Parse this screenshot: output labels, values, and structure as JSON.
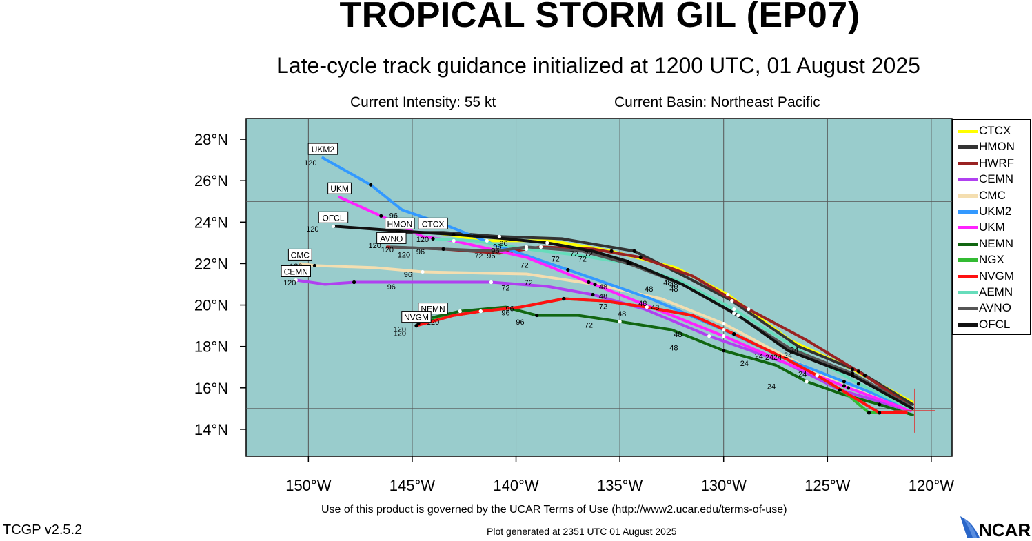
{
  "header": {
    "title": "TROPICAL STORM GIL (EP07)",
    "subtitle": "Late-cycle track guidance initialized at 1200 UTC, 01 August 2025",
    "intensity": "Current Intensity: 55 kt",
    "basin": "Current Basin: Northeast Pacific"
  },
  "footer": {
    "terms": "Use of this product is governed by the UCAR Terms of Use (http://www2.ucar.edu/terms-of-use)",
    "version": "TCGP v2.5.2",
    "generated": "Plot generated at 2351 UTC   01 August 2025",
    "logo_text": "NCAR"
  },
  "colors": {
    "ocean": "#99cccc",
    "grid": "#555555",
    "current_position_marker": "#dd3333"
  },
  "chart_data": {
    "type": "line",
    "xlim": [
      -153,
      -119
    ],
    "ylim": [
      12.7,
      29
    ],
    "xticks": [
      -150,
      -145,
      -140,
      -135,
      -130,
      -125,
      -120
    ],
    "xtick_labels": [
      "150°W",
      "145°W",
      "140°W",
      "135°W",
      "130°W",
      "125°W",
      "120°W"
    ],
    "yticks": [
      14,
      16,
      18,
      20,
      22,
      24,
      26,
      28
    ],
    "ytick_labels": [
      "14°N",
      "16°N",
      "18°N",
      "20°N",
      "22°N",
      "24°N",
      "26°N",
      "28°N"
    ],
    "grid": true,
    "legend_position": "right",
    "current_position": [
      -120.8,
      14.9
    ],
    "series": [
      {
        "name": "CTCX",
        "color": "#ffff00",
        "points": [
          [
            -120.9,
            15.3
          ],
          [
            -123.8,
            16.9
          ],
          [
            -126.8,
            18.3
          ],
          [
            -129.8,
            20.5
          ],
          [
            -132.3,
            21.8
          ],
          [
            -135.4,
            22.6
          ],
          [
            -138.3,
            23.1
          ],
          [
            -141.4,
            23.1
          ],
          [
            -144.0,
            23.5
          ]
        ],
        "end_label": "CTCX"
      },
      {
        "name": "HMON",
        "color": "#333333",
        "points": [
          [
            -120.9,
            15.2
          ],
          [
            -123.5,
            16.8
          ],
          [
            -126.4,
            18.0
          ],
          [
            -129.6,
            20.2
          ],
          [
            -132.1,
            21.5
          ],
          [
            -134.3,
            22.6
          ],
          [
            -137.8,
            23.2
          ],
          [
            -140.8,
            23.3
          ],
          [
            -143.5,
            23.5
          ],
          [
            -145.6,
            23.5
          ]
        ],
        "end_label": "HMON"
      },
      {
        "name": "HWRF",
        "color": "#992222",
        "points": [
          [
            -121.0,
            15.1
          ],
          [
            -123.2,
            16.6
          ],
          [
            -126.0,
            18.3
          ],
          [
            -128.8,
            19.8
          ],
          [
            -131.5,
            21.4
          ],
          [
            -134.0,
            22.3
          ],
          [
            -136.3,
            22.7
          ],
          [
            -138.8,
            22.8
          ],
          [
            -140.8,
            22.5
          ],
          [
            -143.5,
            22.7
          ],
          [
            -146.2,
            22.8
          ]
        ]
      },
      {
        "name": "CEMN",
        "color": "#b040f0",
        "points": [
          [
            -121.0,
            14.9
          ],
          [
            -124.4,
            15.9
          ],
          [
            -127.0,
            17.2
          ],
          [
            -130.7,
            18.5
          ],
          [
            -133.8,
            19.8
          ],
          [
            -136.3,
            20.5
          ],
          [
            -138.5,
            20.9
          ],
          [
            -141.2,
            21.1
          ],
          [
            -143.2,
            21.1
          ],
          [
            -147.8,
            21.1
          ],
          [
            -149.2,
            21.0
          ],
          [
            -150.6,
            21.2
          ]
        ],
        "end_label": "CEMN"
      },
      {
        "name": "CMC",
        "color": "#f4deb0",
        "points": [
          [
            -121.0,
            15.0
          ],
          [
            -124.2,
            16.1
          ],
          [
            -127.0,
            17.5
          ],
          [
            -130.0,
            19.1
          ],
          [
            -133.0,
            20.3
          ],
          [
            -136.2,
            21.0
          ],
          [
            -139.5,
            21.5
          ],
          [
            -144.5,
            21.6
          ],
          [
            -146.8,
            21.8
          ],
          [
            -149.7,
            21.9
          ],
          [
            -150.4,
            22.0
          ]
        ],
        "end_label": "CMC"
      },
      {
        "name": "UKM2",
        "color": "#3399ff",
        "points": [
          [
            -121.0,
            15.0
          ],
          [
            -124.2,
            16.3
          ],
          [
            -127.0,
            17.4
          ],
          [
            -130.0,
            18.8
          ],
          [
            -133.5,
            20.3
          ],
          [
            -137.5,
            21.7
          ],
          [
            -141.0,
            22.9
          ],
          [
            -143.5,
            23.9
          ],
          [
            -145.5,
            24.6
          ],
          [
            -147.0,
            25.8
          ],
          [
            -149.3,
            27.1
          ]
        ],
        "end_label": "UKM2"
      },
      {
        "name": "UKM",
        "color": "#ff22ff",
        "points": [
          [
            -121.0,
            14.9
          ],
          [
            -124.0,
            16.0
          ],
          [
            -127.0,
            17.2
          ],
          [
            -130.0,
            18.5
          ],
          [
            -133.5,
            19.9
          ],
          [
            -136.5,
            21.1
          ],
          [
            -139.5,
            22.3
          ],
          [
            -143.0,
            23.1
          ],
          [
            -144.5,
            23.3
          ],
          [
            -146.5,
            24.3
          ],
          [
            -148.5,
            25.2
          ]
        ],
        "end_label": "UKM"
      },
      {
        "name": "NEMN",
        "color": "#116611",
        "points": [
          [
            -120.9,
            14.7
          ],
          [
            -122.5,
            15.2
          ],
          [
            -124.3,
            15.7
          ],
          [
            -126.0,
            16.3
          ],
          [
            -127.5,
            17.1
          ],
          [
            -130.0,
            17.8
          ],
          [
            -132.5,
            18.8
          ],
          [
            -135.0,
            19.2
          ],
          [
            -137.0,
            19.5
          ],
          [
            -139.0,
            19.5
          ],
          [
            -140.5,
            19.9
          ],
          [
            -142.7,
            19.7
          ],
          [
            -144.0,
            19.4
          ]
        ],
        "end_label": "NEMN"
      },
      {
        "name": "NGX",
        "color": "#33bb33",
        "points": [
          [
            -121.4,
            14.8
          ],
          [
            -123.0,
            14.8
          ],
          [
            -124.2,
            15.8
          ],
          [
            -125.5,
            16.6
          ],
          [
            -127.0,
            17.4
          ],
          [
            -129.5,
            18.6
          ],
          [
            -131.5,
            19.5
          ],
          [
            -133.7,
            19.9
          ],
          [
            -135.8,
            20.2
          ],
          [
            -137.7,
            20.3
          ],
          [
            -139.8,
            19.9
          ],
          [
            -141.7,
            19.7
          ],
          [
            -143.0,
            19.5
          ],
          [
            -144.7,
            19.1
          ]
        ]
      },
      {
        "name": "NVGM",
        "color": "#ff1111",
        "points": [
          [
            -121.2,
            14.8
          ],
          [
            -122.5,
            14.8
          ],
          [
            -124.0,
            15.7
          ],
          [
            -125.5,
            16.6
          ],
          [
            -127.0,
            17.4
          ],
          [
            -129.5,
            18.6
          ],
          [
            -131.5,
            19.5
          ],
          [
            -133.7,
            19.9
          ],
          [
            -135.8,
            20.2
          ],
          [
            -137.7,
            20.3
          ],
          [
            -139.8,
            19.9
          ],
          [
            -141.7,
            19.7
          ],
          [
            -143.0,
            19.5
          ],
          [
            -144.8,
            19.0
          ]
        ],
        "end_label": "NVGM"
      },
      {
        "name": "AEMN",
        "color": "#66ddbb",
        "points": [
          [
            -121.0,
            15.0
          ],
          [
            -123.5,
            16.2
          ],
          [
            -126.5,
            17.9
          ],
          [
            -129.5,
            19.8
          ],
          [
            -132.0,
            21.1
          ],
          [
            -134.5,
            22.0
          ],
          [
            -137.0,
            22.4
          ],
          [
            -139.5,
            22.7
          ],
          [
            -142.0,
            23.1
          ],
          [
            -144.0,
            23.2
          ]
        ]
      },
      {
        "name": "AVNO",
        "color": "#555555",
        "points": [
          [
            -121.0,
            15.1
          ],
          [
            -123.8,
            16.7
          ],
          [
            -126.8,
            17.9
          ],
          [
            -129.5,
            19.6
          ],
          [
            -132.0,
            21.0
          ],
          [
            -134.6,
            22.0
          ],
          [
            -136.8,
            22.6
          ],
          [
            -139.5,
            22.8
          ],
          [
            -141.0,
            22.6
          ],
          [
            -143.5,
            22.7
          ],
          [
            -146.0,
            22.8
          ]
        ],
        "end_label": "AVNO"
      },
      {
        "name": "OFCL",
        "color": "#111111",
        "points": [
          [
            -120.9,
            15.0
          ],
          [
            -123.8,
            16.6
          ],
          [
            -126.9,
            17.8
          ],
          [
            -129.3,
            19.5
          ],
          [
            -132.0,
            21.0
          ],
          [
            -134.6,
            22.1
          ],
          [
            -136.3,
            22.6
          ],
          [
            -138.5,
            23.0
          ],
          [
            -140.5,
            23.2
          ],
          [
            -143.0,
            23.4
          ],
          [
            -146.0,
            23.6
          ],
          [
            -148.8,
            23.8
          ]
        ],
        "end_label": "OFCL"
      }
    ],
    "annotations": [
      {
        "text": "120",
        "lon": -149.9,
        "lat": 26.73
      },
      {
        "text": "120",
        "lon": -149.8,
        "lat": 23.55
      },
      {
        "text": "120",
        "lon": -150.6,
        "lat": 21.75
      },
      {
        "text": "120",
        "lon": -150.9,
        "lat": 20.95
      },
      {
        "text": "120",
        "lon": -146.8,
        "lat": 22.75
      },
      {
        "text": "120",
        "lon": -146.2,
        "lat": 22.55
      },
      {
        "text": "120",
        "lon": -145.4,
        "lat": 22.3
      },
      {
        "text": "120",
        "lon": -144.5,
        "lat": 23.05
      },
      {
        "text": "120",
        "lon": -145.6,
        "lat": 18.7
      },
      {
        "text": "120",
        "lon": -145.6,
        "lat": 18.5
      },
      {
        "text": "120",
        "lon": -144.0,
        "lat": 19.05
      },
      {
        "text": "96",
        "lon": -145.9,
        "lat": 24.2
      },
      {
        "text": "96",
        "lon": -145.6,
        "lat": 23.35
      },
      {
        "text": "96",
        "lon": -144.6,
        "lat": 22.45
      },
      {
        "text": "96",
        "lon": -145.2,
        "lat": 21.35
      },
      {
        "text": "96",
        "lon": -146.0,
        "lat": 20.75
      },
      {
        "text": "96",
        "lon": -140.9,
        "lat": 22.7
      },
      {
        "text": "96",
        "lon": -140.6,
        "lat": 22.85
      },
      {
        "text": "96",
        "lon": -141.2,
        "lat": 22.25
      },
      {
        "text": "96",
        "lon": -141.0,
        "lat": 22.5
      },
      {
        "text": "96",
        "lon": -140.5,
        "lat": 19.5
      },
      {
        "text": "96",
        "lon": -140.3,
        "lat": 19.7
      },
      {
        "text": "96",
        "lon": -139.8,
        "lat": 19.05
      },
      {
        "text": "72",
        "lon": -141.8,
        "lat": 22.25
      },
      {
        "text": "72",
        "lon": -139.6,
        "lat": 21.8
      },
      {
        "text": "72",
        "lon": -139.4,
        "lat": 20.95
      },
      {
        "text": "72",
        "lon": -140.5,
        "lat": 20.7
      },
      {
        "text": "72",
        "lon": -138.1,
        "lat": 22.1
      },
      {
        "text": "72",
        "lon": -137.2,
        "lat": 22.35
      },
      {
        "text": "72",
        "lon": -136.8,
        "lat": 22.1
      },
      {
        "text": "72",
        "lon": -136.5,
        "lat": 22.35
      },
      {
        "text": "72",
        "lon": -135.8,
        "lat": 19.8
      },
      {
        "text": "72",
        "lon": -136.5,
        "lat": 18.9
      },
      {
        "text": "48",
        "lon": -135.8,
        "lat": 20.75
      },
      {
        "text": "48",
        "lon": -135.8,
        "lat": 20.3
      },
      {
        "text": "48",
        "lon": -134.9,
        "lat": 19.45
      },
      {
        "text": "48",
        "lon": -133.9,
        "lat": 19.95
      },
      {
        "text": "48",
        "lon": -133.3,
        "lat": 19.75
      },
      {
        "text": "48",
        "lon": -132.7,
        "lat": 20.95
      },
      {
        "text": "48",
        "lon": -132.4,
        "lat": 20.85
      },
      {
        "text": "48",
        "lon": -132.4,
        "lat": 20.65
      },
      {
        "text": "48",
        "lon": -133.6,
        "lat": 20.65
      },
      {
        "text": "48",
        "lon": -132.2,
        "lat": 18.45
      },
      {
        "text": "48",
        "lon": -132.4,
        "lat": 17.8
      },
      {
        "text": "24",
        "lon": -128.3,
        "lat": 17.4
      },
      {
        "text": "24",
        "lon": -127.8,
        "lat": 17.35
      },
      {
        "text": "24",
        "lon": -127.4,
        "lat": 17.35
      },
      {
        "text": "24",
        "lon": -126.9,
        "lat": 17.45
      },
      {
        "text": "24",
        "lon": -126.6,
        "lat": 17.7
      },
      {
        "text": "24",
        "lon": -129.0,
        "lat": 17.05
      },
      {
        "text": "24",
        "lon": -126.2,
        "lat": 16.55
      },
      {
        "text": "24",
        "lon": -127.7,
        "lat": 15.95
      }
    ]
  }
}
